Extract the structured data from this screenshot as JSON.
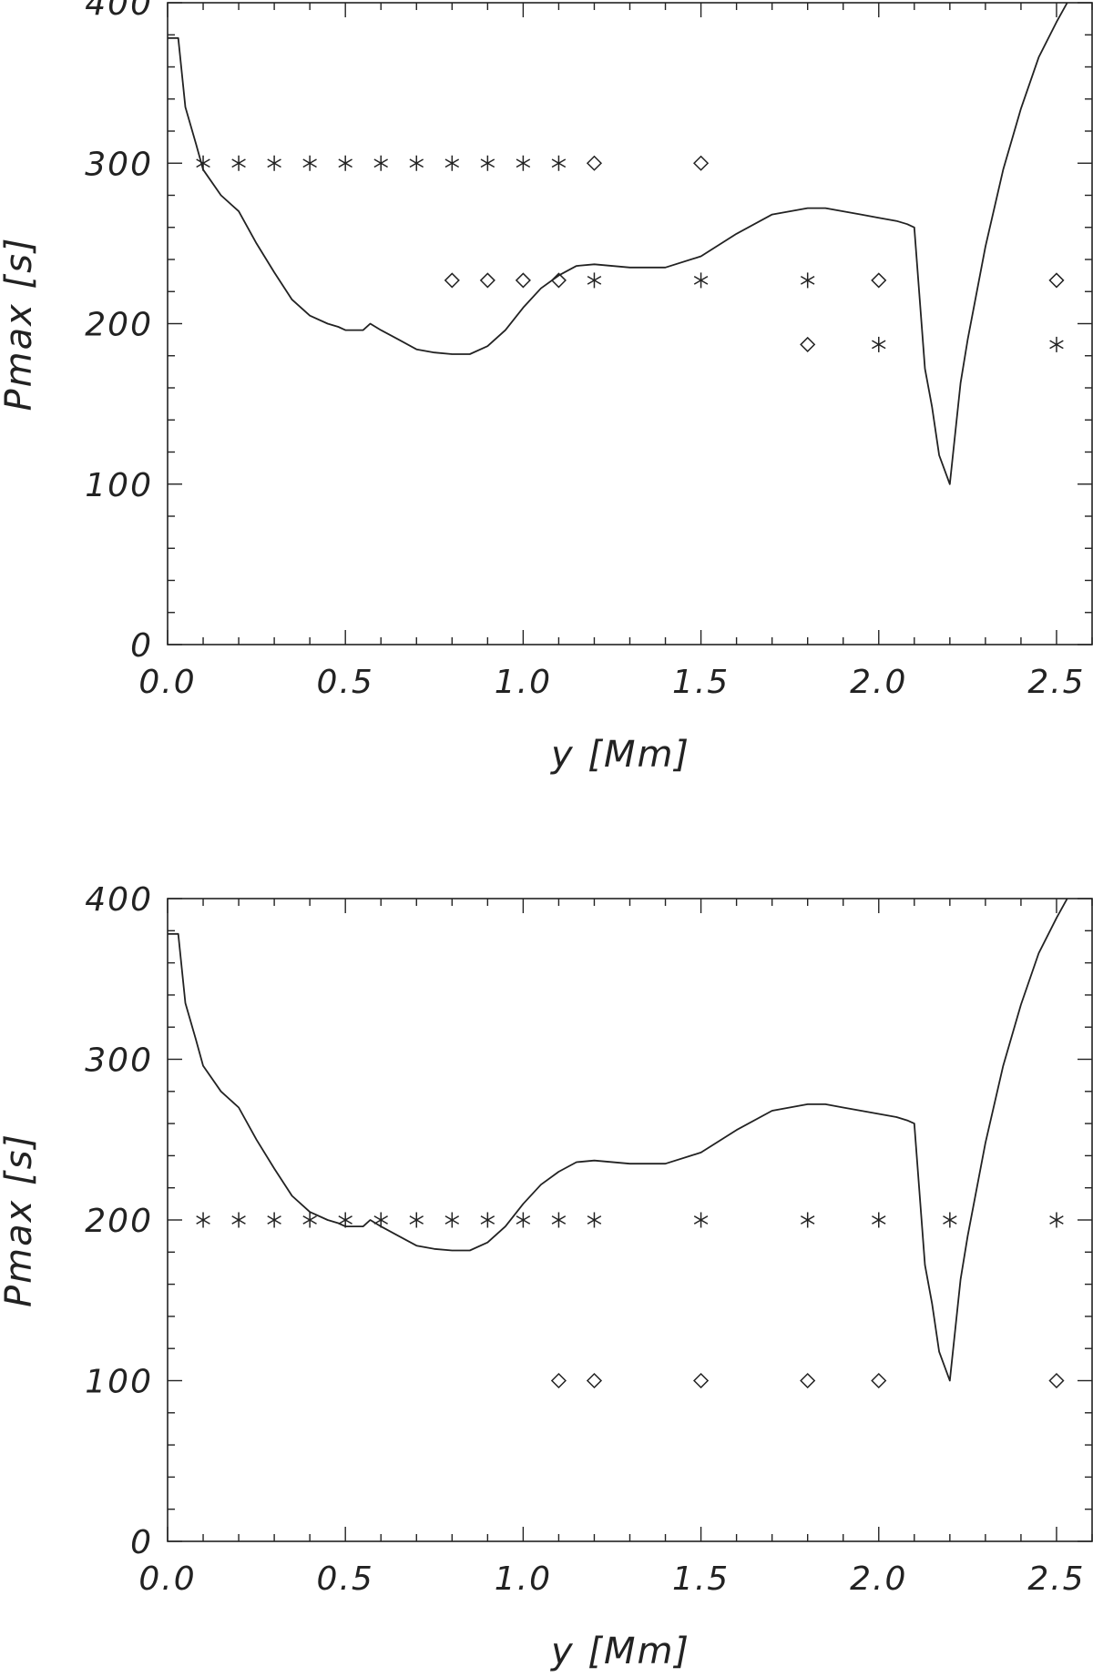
{
  "chart_data": [
    {
      "type": "line",
      "xlabel": "y [Mm]",
      "ylabel": "Pmax [s]",
      "xlim": [
        0,
        2.6
      ],
      "ylim": [
        0,
        400
      ],
      "xticks": [
        "0.0",
        "0.5",
        "1.0",
        "1.5",
        "2.0",
        "2.5"
      ],
      "yticks": [
        "0",
        "100",
        "200",
        "300",
        "400"
      ],
      "grid": false,
      "series": [
        {
          "style": "solid-line",
          "x": [
            0.0,
            0.03,
            0.05,
            0.08,
            0.1,
            0.15,
            0.2,
            0.25,
            0.3,
            0.35,
            0.4,
            0.45,
            0.48,
            0.5,
            0.55,
            0.57,
            0.6,
            0.65,
            0.7,
            0.75,
            0.8,
            0.85,
            0.9,
            0.95,
            1.0,
            1.05,
            1.1,
            1.15,
            1.2,
            1.3,
            1.4,
            1.5,
            1.6,
            1.7,
            1.8,
            1.85,
            1.9,
            1.95,
            2.0,
            2.05,
            2.08,
            2.1,
            2.13,
            2.15,
            2.17,
            2.2,
            2.23,
            2.25,
            2.3,
            2.35,
            2.4,
            2.45,
            2.5,
            2.53
          ],
          "y": [
            378,
            378,
            335,
            312,
            296,
            280,
            270,
            250,
            232,
            215,
            205,
            200,
            198,
            196,
            196,
            200,
            196,
            190,
            184,
            182,
            181,
            181,
            186,
            196,
            210,
            222,
            230,
            236,
            237,
            235,
            235,
            242,
            256,
            268,
            272,
            272,
            270,
            268,
            266,
            264,
            262,
            260,
            172,
            148,
            118,
            100,
            163,
            190,
            248,
            296,
            334,
            366,
            388,
            400
          ]
        },
        {
          "style": "asterisk",
          "x": [
            0.1,
            0.2,
            0.3,
            0.4,
            0.5,
            0.6,
            0.7,
            0.8,
            0.9,
            1.0,
            1.1,
            1.2,
            1.5,
            1.8,
            2.0,
            2.5
          ],
          "y": [
            300,
            300,
            300,
            300,
            300,
            300,
            300,
            300,
            300,
            300,
            300,
            227,
            227,
            227,
            187,
            187
          ]
        },
        {
          "style": "diamond",
          "x": [
            0.8,
            0.9,
            1.0,
            1.1,
            1.2,
            1.5,
            1.8,
            2.0,
            2.5
          ],
          "y": [
            227,
            227,
            227,
            227,
            300,
            300,
            187,
            227,
            227
          ]
        }
      ]
    },
    {
      "type": "line",
      "xlabel": "y [Mm]",
      "ylabel": "Pmax [s]",
      "xlim": [
        0,
        2.6
      ],
      "ylim": [
        0,
        400
      ],
      "xticks": [
        "0.0",
        "0.5",
        "1.0",
        "1.5",
        "2.0",
        "2.5"
      ],
      "yticks": [
        "0",
        "100",
        "200",
        "300",
        "400"
      ],
      "grid": false,
      "series": [
        {
          "style": "solid-line",
          "x": [
            0.0,
            0.03,
            0.05,
            0.08,
            0.1,
            0.15,
            0.2,
            0.25,
            0.3,
            0.35,
            0.4,
            0.45,
            0.48,
            0.5,
            0.55,
            0.57,
            0.6,
            0.65,
            0.7,
            0.75,
            0.8,
            0.85,
            0.9,
            0.95,
            1.0,
            1.05,
            1.1,
            1.15,
            1.2,
            1.3,
            1.4,
            1.5,
            1.6,
            1.7,
            1.8,
            1.85,
            1.9,
            1.95,
            2.0,
            2.05,
            2.08,
            2.1,
            2.13,
            2.15,
            2.17,
            2.2,
            2.23,
            2.25,
            2.3,
            2.35,
            2.4,
            2.45,
            2.5,
            2.53
          ],
          "y": [
            378,
            378,
            335,
            312,
            296,
            280,
            270,
            250,
            232,
            215,
            205,
            200,
            198,
            196,
            196,
            200,
            196,
            190,
            184,
            182,
            181,
            181,
            186,
            196,
            210,
            222,
            230,
            236,
            237,
            235,
            235,
            242,
            256,
            268,
            272,
            272,
            270,
            268,
            266,
            264,
            262,
            260,
            172,
            148,
            118,
            100,
            163,
            190,
            248,
            296,
            334,
            366,
            388,
            400
          ]
        },
        {
          "style": "asterisk",
          "x": [
            0.1,
            0.2,
            0.3,
            0.4,
            0.5,
            0.6,
            0.7,
            0.8,
            0.9,
            1.0,
            1.1,
            1.2,
            1.5,
            1.8,
            2.0,
            2.2,
            2.5
          ],
          "y": [
            200,
            200,
            200,
            200,
            200,
            200,
            200,
            200,
            200,
            200,
            200,
            200,
            200,
            200,
            200,
            200,
            200
          ]
        },
        {
          "style": "diamond",
          "x": [
            1.1,
            1.2,
            1.5,
            1.8,
            2.0,
            2.5
          ],
          "y": [
            100,
            100,
            100,
            100,
            100,
            100
          ]
        }
      ]
    }
  ]
}
